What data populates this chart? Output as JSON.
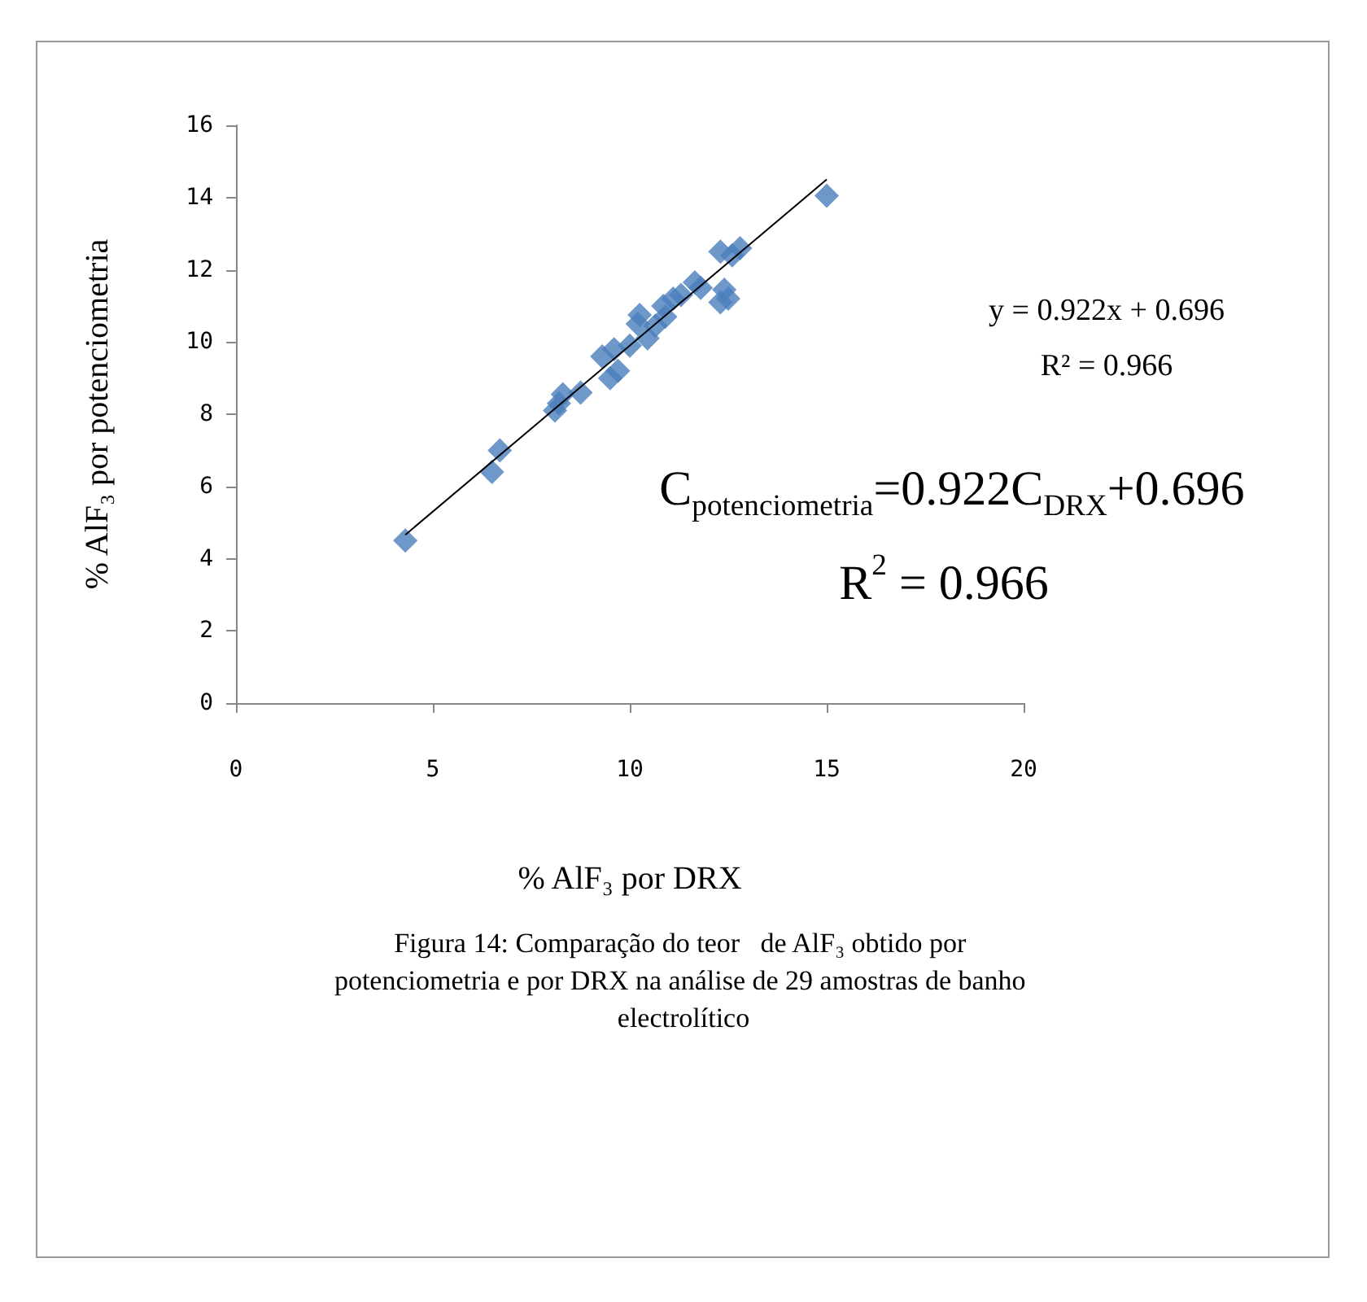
{
  "chart_data": {
    "type": "scatter",
    "xlabel": "% AlF₃ por DRX",
    "ylabel": "% AlF₃ por potenciometria",
    "xlim": [
      0,
      20
    ],
    "xticks": [
      0,
      5,
      10,
      15,
      20
    ],
    "ylim": [
      0,
      16
    ],
    "yticks": [
      0,
      2,
      4,
      6,
      8,
      10,
      12,
      14,
      16
    ],
    "grid": false,
    "marker": "diamond",
    "series": [
      {
        "color": "#4a7ebb",
        "x": [
          4.3,
          6.5,
          6.7,
          8.1,
          8.3,
          8.75,
          9.5,
          9.3,
          9.7,
          10,
          10.25,
          10.45,
          10.65,
          10.85,
          11.1,
          11.65,
          12.3,
          12.4,
          12.3,
          12.8,
          15,
          9.6,
          10.9,
          11.3,
          12.5,
          12.6,
          8.2,
          11.8,
          10.2
        ],
        "values": [
          4.5,
          6.4,
          7,
          8.1,
          8.55,
          8.6,
          9,
          9.6,
          9.2,
          9.9,
          10.75,
          10.1,
          10.45,
          11,
          11.2,
          11.65,
          11.1,
          11.45,
          12.5,
          12.6,
          14.05,
          9.8,
          10.7,
          11.3,
          11.2,
          12.4,
          8.3,
          11.5,
          10.5
        ]
      },
      {
        "type": "line",
        "color": "#000000",
        "marker": "none",
        "x": [
          4.3,
          15
        ],
        "values": [
          4.66,
          14.5
        ]
      }
    ],
    "annotations": [
      "y = 0.922x + 0.696",
      "R² = 0.966",
      "C$_{potenciometria}$=0.922C$_{DRX}$+0.696",
      "R$^{2}$ = 0.966",
      "Figura 14: Comparação do teor   de AlF₃ obtido por potenciometria e por DRX na análise de 29 amostras de banho electrolítico"
    ]
  }
}
